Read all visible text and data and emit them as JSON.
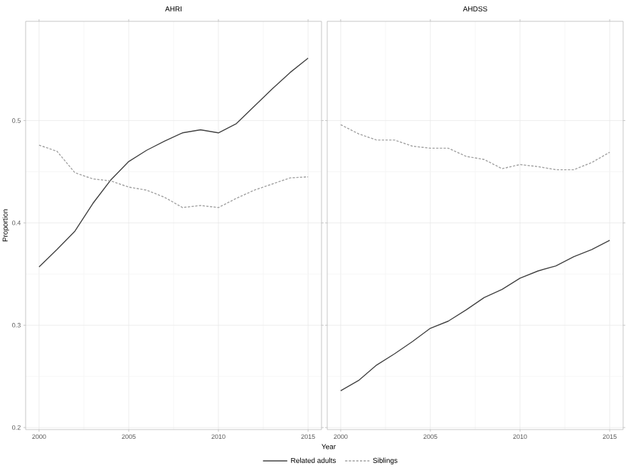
{
  "chart_data": [
    {
      "type": "line",
      "title": "AHRI",
      "xlabel": "Year",
      "ylabel": "Proportion",
      "x": [
        2000,
        2001,
        2002,
        2003,
        2004,
        2005,
        2006,
        2007,
        2008,
        2009,
        2010,
        2011,
        2012,
        2013,
        2014,
        2015
      ],
      "series": [
        {
          "name": "Related adults",
          "color": "#404040",
          "line_style": "solid",
          "values": [
            0.357,
            0.374,
            0.392,
            0.419,
            0.442,
            0.46,
            0.471,
            0.48,
            0.488,
            0.491,
            0.488,
            0.497,
            0.514,
            0.531,
            0.547,
            0.561
          ]
        },
        {
          "name": "Siblings",
          "color": "#a0a0a0",
          "line_style": "dashed",
          "values": [
            0.476,
            0.47,
            0.449,
            0.443,
            0.441,
            0.435,
            0.432,
            0.425,
            0.415,
            0.417,
            0.415,
            0.424,
            0.432,
            0.438,
            0.444,
            0.445
          ]
        }
      ],
      "xlim": [
        1999.25,
        2015.75
      ],
      "ylim": [
        0.198,
        0.597
      ],
      "xticks": [
        2000,
        2005,
        2010,
        2015
      ],
      "yticks": [
        0.2,
        0.3,
        0.4,
        0.5
      ],
      "grid": true,
      "legend": "bottom"
    },
    {
      "type": "line",
      "title": "AHDSS",
      "x": [
        2000,
        2001,
        2002,
        2003,
        2004,
        2005,
        2006,
        2007,
        2008,
        2009,
        2010,
        2011,
        2012,
        2013,
        2014,
        2015
      ],
      "series": [
        {
          "color": "#404040",
          "line_style": "solid",
          "values": [
            0.236,
            0.246,
            0.261,
            0.272,
            0.284,
            0.297,
            0.304,
            0.315,
            0.327,
            0.335,
            0.346,
            0.353,
            0.358,
            0.367,
            0.374,
            0.383
          ]
        },
        {
          "color": "#a0a0a0",
          "line_style": "dashed",
          "values": [
            0.496,
            0.487,
            0.481,
            0.481,
            0.475,
            0.473,
            0.473,
            0.465,
            0.462,
            0.453,
            0.457,
            0.455,
            0.452,
            0.452,
            0.459,
            0.469
          ]
        }
      ],
      "xlim": [
        1999.25,
        2015.75
      ],
      "ylim": [
        0.198,
        0.597
      ],
      "xticks": [
        2000,
        2005,
        2010,
        2015
      ],
      "yticks": [
        0.2,
        0.3,
        0.4,
        0.5
      ],
      "grid": true,
      "tick_labels": "x"
    }
  ]
}
